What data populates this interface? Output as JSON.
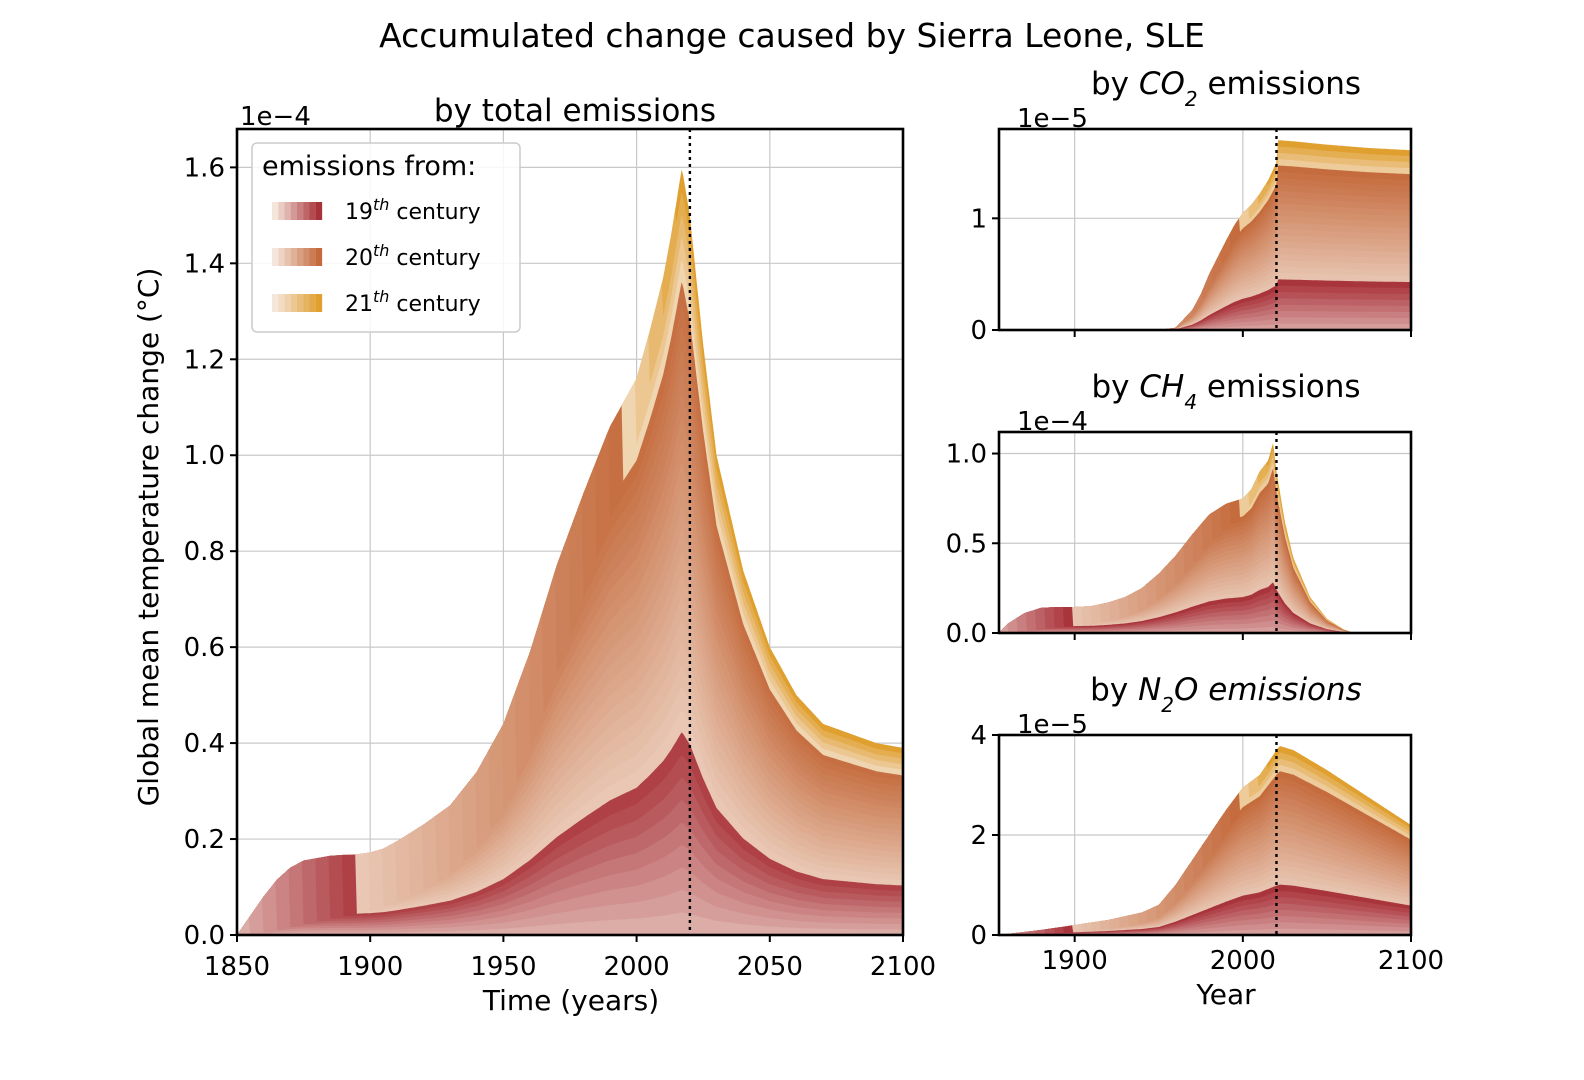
{
  "figure": {
    "title": "Accumulated change caused by Sierra Leone, SLE"
  },
  "colors": {
    "c19": "#a8323a",
    "c20": "#c46a3c",
    "c21": "#e0a030",
    "light": "#f5e6dc"
  },
  "legend": {
    "title": "emissions from:",
    "entries": [
      {
        "num": "19",
        "sup": "th",
        "label": " century"
      },
      {
        "num": "20",
        "sup": "th",
        "label": " century"
      },
      {
        "num": "21",
        "sup": "th",
        "label": " century"
      }
    ]
  },
  "chart_data": [
    {
      "id": "total",
      "type": "area",
      "title": "by total emissions",
      "xlabel": "Time (years)",
      "ylabel": "Global mean temperature change (°C)",
      "scale_label": "1e−4",
      "scale": 0.0001,
      "xlim": [
        1850,
        2100
      ],
      "ylim": [
        0,
        1.68
      ],
      "xticks": [
        1850,
        1900,
        1950,
        2000,
        2050,
        2100
      ],
      "yticks": [
        0.0,
        0.2,
        0.4,
        0.6,
        0.8,
        1.0,
        1.2,
        1.4,
        1.6
      ],
      "ytick_labels": [
        "0.0",
        "0.2",
        "0.4",
        "0.6",
        "0.8",
        "1.0",
        "1.2",
        "1.4",
        "1.6"
      ],
      "reference_year": 2020,
      "envelope": {
        "x": [
          1850,
          1855,
          1860,
          1865,
          1870,
          1875,
          1880,
          1885,
          1890,
          1895,
          1900,
          1905,
          1910,
          1920,
          1930,
          1940,
          1950,
          1960,
          1970,
          1980,
          1990,
          2000,
          2005,
          2010,
          2013,
          2017,
          2020,
          2025,
          2030,
          2040,
          2050,
          2060,
          2070,
          2080,
          2090,
          2100
        ],
        "y": [
          0.0,
          0.04,
          0.08,
          0.115,
          0.14,
          0.155,
          0.16,
          0.165,
          0.167,
          0.168,
          0.172,
          0.18,
          0.195,
          0.23,
          0.27,
          0.34,
          0.44,
          0.59,
          0.77,
          0.92,
          1.06,
          1.16,
          1.26,
          1.37,
          1.46,
          1.6,
          1.5,
          1.23,
          1.0,
          0.76,
          0.6,
          0.5,
          0.44,
          0.42,
          0.4,
          0.39
        ]
      }
    },
    {
      "id": "co2",
      "type": "area",
      "title_parts": [
        "by ",
        "CO",
        "2",
        " emissions"
      ],
      "scale_label": "1e−5",
      "scale": 1e-05,
      "xlim": [
        1855,
        2100
      ],
      "ylim": [
        0,
        1.8
      ],
      "xticks": [
        1900,
        2000,
        2100
      ],
      "yticks": [
        0,
        1
      ],
      "ytick_labels": [
        "0",
        "1"
      ],
      "reference_year": 2020,
      "envelope": {
        "x": [
          1855,
          1950,
          1960,
          1970,
          1975,
          1980,
          1985,
          1990,
          1995,
          2000,
          2005,
          2010,
          2015,
          2020,
          2021,
          2030,
          2050,
          2075,
          2100
        ],
        "y": [
          0,
          0,
          0.02,
          0.18,
          0.32,
          0.5,
          0.65,
          0.8,
          0.94,
          1.05,
          1.12,
          1.22,
          1.34,
          1.5,
          1.7,
          1.69,
          1.66,
          1.63,
          1.61
        ]
      }
    },
    {
      "id": "ch4",
      "type": "area",
      "title_parts": [
        "by ",
        "CH",
        "4",
        " emissions"
      ],
      "scale_label": "1e−4",
      "scale": 0.0001,
      "xlim": [
        1855,
        2100
      ],
      "ylim": [
        0,
        1.12
      ],
      "xticks": [
        1900,
        2000,
        2100
      ],
      "yticks": [
        0.0,
        0.5,
        1.0
      ],
      "ytick_labels": [
        "0.0",
        "0.5",
        "1.0"
      ],
      "reference_year": 2020,
      "envelope": {
        "x": [
          1855,
          1860,
          1870,
          1880,
          1890,
          1900,
          1910,
          1920,
          1930,
          1940,
          1950,
          1960,
          1970,
          1980,
          1990,
          2000,
          2005,
          2010,
          2015,
          2018,
          2020,
          2025,
          2030,
          2040,
          2050,
          2060,
          2066,
          2100
        ],
        "y": [
          0,
          0.05,
          0.11,
          0.14,
          0.145,
          0.145,
          0.15,
          0.17,
          0.2,
          0.25,
          0.33,
          0.43,
          0.55,
          0.66,
          0.72,
          0.75,
          0.8,
          0.9,
          0.96,
          1.06,
          0.9,
          0.62,
          0.42,
          0.2,
          0.08,
          0.02,
          0.0,
          0.0
        ]
      }
    },
    {
      "id": "n2o",
      "type": "area",
      "title_parts": [
        "by ",
        "N",
        "2",
        "O emissions"
      ],
      "xlabel": "Year",
      "scale_label": "1e−5",
      "scale": 1e-05,
      "xlim": [
        1855,
        2100
      ],
      "ylim": [
        0,
        4.0
      ],
      "xticks": [
        1900,
        2000,
        2100
      ],
      "yticks": [
        0,
        2,
        4
      ],
      "ytick_labels": [
        "0",
        "2",
        "4"
      ],
      "reference_year": 2020,
      "envelope": {
        "x": [
          1855,
          1880,
          1900,
          1920,
          1940,
          1950,
          1960,
          1970,
          1980,
          1990,
          2000,
          2010,
          2015,
          2020,
          2022,
          2030,
          2050,
          2075,
          2100
        ],
        "y": [
          0,
          0.1,
          0.2,
          0.3,
          0.45,
          0.6,
          1.0,
          1.5,
          2.0,
          2.5,
          2.95,
          3.2,
          3.45,
          3.7,
          3.78,
          3.7,
          3.3,
          2.75,
          2.2
        ]
      }
    }
  ]
}
